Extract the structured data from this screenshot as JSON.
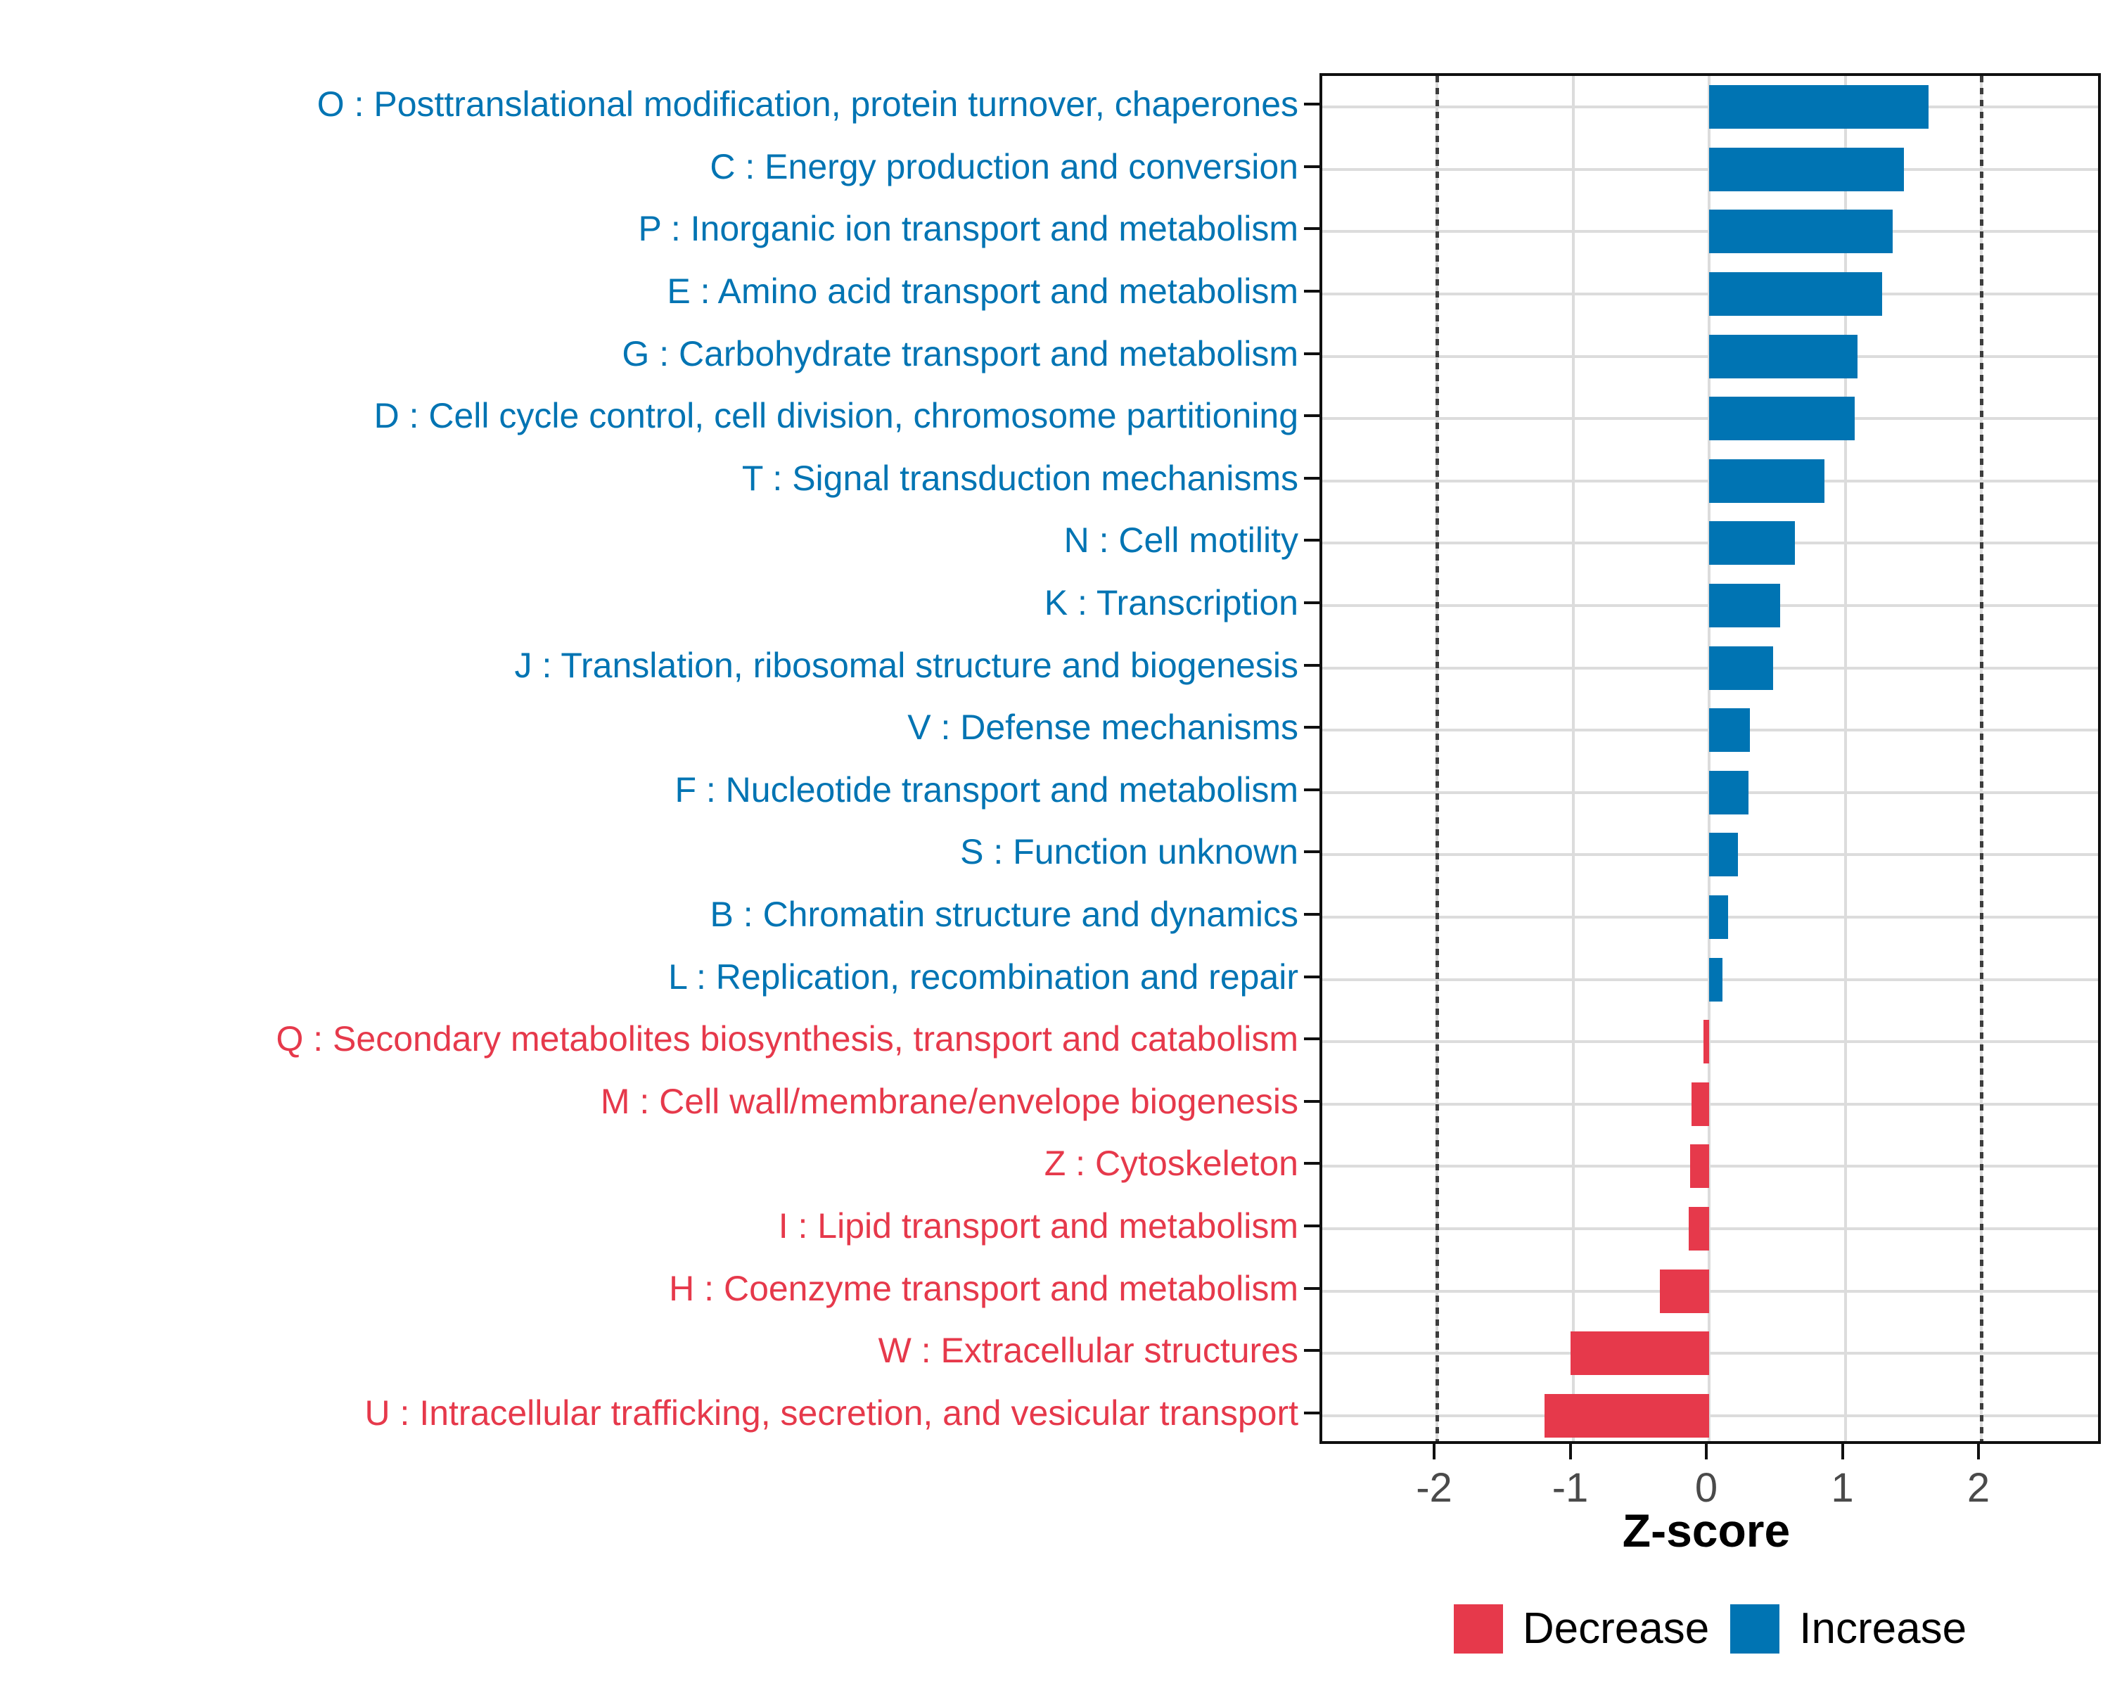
{
  "chart_data": {
    "type": "bar",
    "orientation": "horizontal",
    "title": "",
    "xlabel": "Z-score",
    "ylabel": "",
    "xlim": [
      -2.84,
      2.9
    ],
    "xticks": [
      -2,
      -1,
      0,
      1,
      2
    ],
    "dashed_guides": [
      -2,
      2
    ],
    "grid": true,
    "legend_position": "bottom",
    "colors": {
      "increase": "#0074B3",
      "decrease": "#E6394B",
      "grid": "#DCDCDC",
      "dashed_guide": "#3C3C3C",
      "tick_text": "#4A4A4A",
      "panel_border": "#101010",
      "background": "#FFFFFF"
    },
    "legend": [
      {
        "label": "Decrease",
        "group": "decrease"
      },
      {
        "label": "Increase",
        "group": "increase"
      }
    ],
    "categories": [
      {
        "code": "O",
        "label": "O : Posttranslational modification, protein turnover, chaperones",
        "value": 1.61,
        "group": "increase"
      },
      {
        "code": "C",
        "label": "C : Energy production and conversion",
        "value": 1.43,
        "group": "increase"
      },
      {
        "code": "P",
        "label": "P : Inorganic ion transport and metabolism",
        "value": 1.35,
        "group": "increase"
      },
      {
        "code": "E",
        "label": "E : Amino acid transport and metabolism",
        "value": 1.27,
        "group": "increase"
      },
      {
        "code": "G",
        "label": "G : Carbohydrate transport and metabolism",
        "value": 1.09,
        "group": "increase"
      },
      {
        "code": "D",
        "label": "D : Cell cycle control, cell division, chromosome partitioning",
        "value": 1.07,
        "group": "increase"
      },
      {
        "code": "T",
        "label": "T : Signal transduction mechanisms",
        "value": 0.85,
        "group": "increase"
      },
      {
        "code": "N",
        "label": "N : Cell motility",
        "value": 0.63,
        "group": "increase"
      },
      {
        "code": "K",
        "label": "K : Transcription",
        "value": 0.52,
        "group": "increase"
      },
      {
        "code": "J",
        "label": "J : Translation, ribosomal structure and biogenesis",
        "value": 0.47,
        "group": "increase"
      },
      {
        "code": "V",
        "label": "V : Defense mechanisms",
        "value": 0.3,
        "group": "increase"
      },
      {
        "code": "F",
        "label": "F : Nucleotide transport and metabolism",
        "value": 0.29,
        "group": "increase"
      },
      {
        "code": "S",
        "label": "S : Function unknown",
        "value": 0.21,
        "group": "increase"
      },
      {
        "code": "B",
        "label": "B : Chromatin structure and dynamics",
        "value": 0.14,
        "group": "increase"
      },
      {
        "code": "L",
        "label": "L : Replication, recombination and repair",
        "value": 0.1,
        "group": "increase"
      },
      {
        "code": "Q",
        "label": "Q : Secondary metabolites biosynthesis, transport and catabolism",
        "value": -0.04,
        "group": "decrease"
      },
      {
        "code": "M",
        "label": "M : Cell wall/membrane/envelope biogenesis",
        "value": -0.13,
        "group": "decrease"
      },
      {
        "code": "Z",
        "label": "Z : Cytoskeleton",
        "value": -0.14,
        "group": "decrease"
      },
      {
        "code": "I",
        "label": "I : Lipid transport and metabolism",
        "value": -0.15,
        "group": "decrease"
      },
      {
        "code": "H",
        "label": "H : Coenzyme transport and metabolism",
        "value": -0.36,
        "group": "decrease"
      },
      {
        "code": "W",
        "label": "W : Extracellular structures",
        "value": -1.02,
        "group": "decrease"
      },
      {
        "code": "U",
        "label": "U : Intracellular trafficking, secretion, and vesicular transport",
        "value": -1.21,
        "group": "decrease"
      }
    ]
  }
}
